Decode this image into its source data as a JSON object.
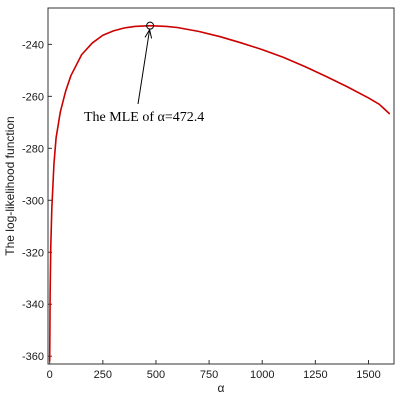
{
  "chart_data": {
    "type": "line",
    "title": "",
    "xlabel": "α",
    "ylabel": "The log-likelihood function",
    "xlim": [
      -8,
      1620
    ],
    "ylim": [
      -363,
      -226
    ],
    "x_ticks": [
      0,
      250,
      500,
      750,
      1000,
      1250,
      1500
    ],
    "y_ticks": [
      -240,
      -260,
      -280,
      -300,
      -320,
      -340,
      -360
    ],
    "grid": false,
    "legend": "none",
    "series": [
      {
        "color": "#cc0000",
        "x": [
          0,
          2,
          5,
          10,
          20,
          30,
          50,
          75,
          100,
          150,
          200,
          250,
          300,
          350,
          400,
          472.4,
          550,
          600,
          700,
          800,
          900,
          1000,
          1100,
          1200,
          1300,
          1400,
          1500,
          1550,
          1600
        ],
        "y": [
          -362,
          -336,
          -318,
          -303,
          -286,
          -276,
          -266,
          -258,
          -252,
          -244,
          -239.5,
          -236.5,
          -234.8,
          -233.7,
          -233.1,
          -232.8,
          -233.1,
          -233.5,
          -235,
          -237,
          -239.4,
          -242,
          -245,
          -248.5,
          -252.3,
          -256.3,
          -260.6,
          -263,
          -266.8
        ]
      }
    ],
    "annotations": [
      {
        "text": "The MLE of α=472.4",
        "point": {
          "x": 472.4,
          "y": -232.8
        }
      }
    ]
  }
}
